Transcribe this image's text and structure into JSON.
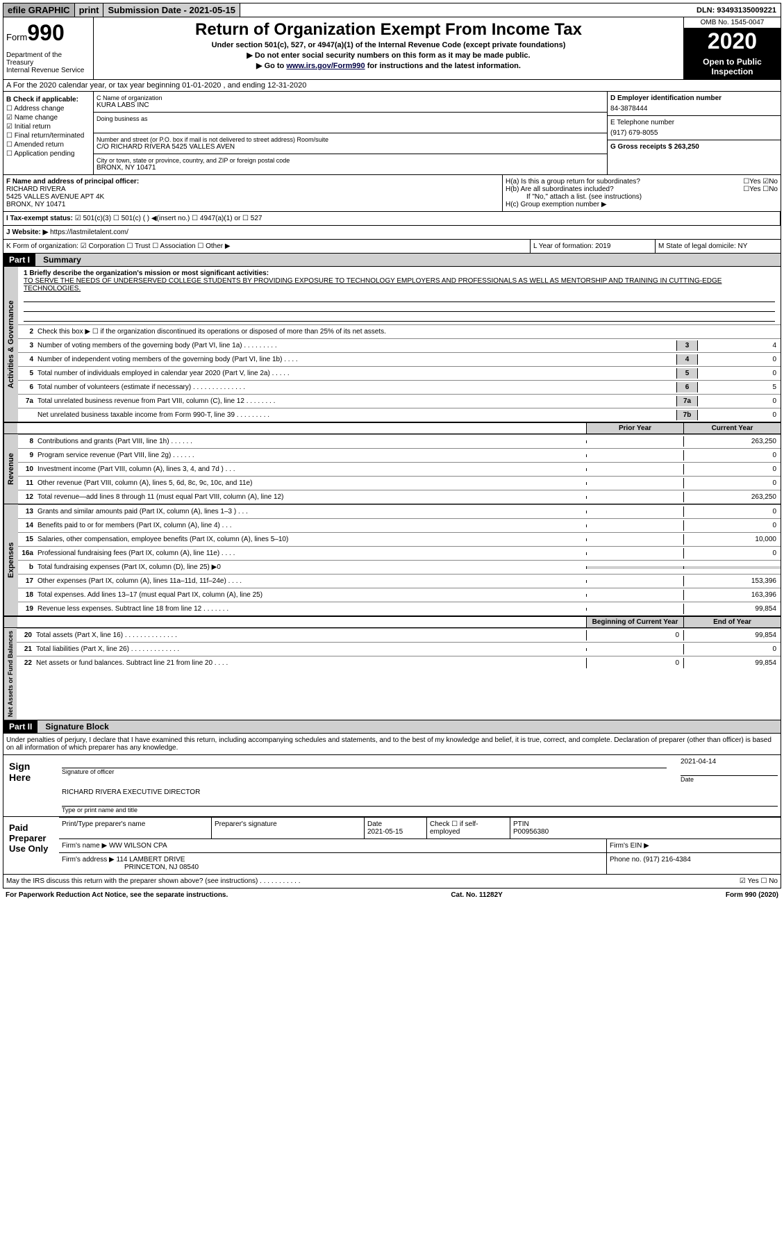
{
  "topbar": {
    "efile": "efile GRAPHIC",
    "print": "print",
    "submission_label": "Submission Date - 2021-05-15",
    "dln": "DLN: 93493135009221"
  },
  "header": {
    "form_label": "Form",
    "form_num": "990",
    "dept": "Department of the Treasury\nInternal Revenue Service",
    "title": "Return of Organization Exempt From Income Tax",
    "subtitle": "Under section 501(c), 527, or 4947(a)(1) of the Internal Revenue Code (except private foundations)",
    "note1": "▶ Do not enter social security numbers on this form as it may be made public.",
    "note2_pre": "▶ Go to ",
    "note2_link": "www.irs.gov/Form990",
    "note2_post": " for instructions and the latest information.",
    "omb": "OMB No. 1545-0047",
    "year": "2020",
    "open": "Open to Public Inspection"
  },
  "section_a": "A For the 2020 calendar year, or tax year beginning 01-01-2020   , and ending 12-31-2020",
  "col_b": {
    "label": "B Check if applicable:",
    "items": [
      "☐ Address change",
      "☑ Name change",
      "☑ Initial return",
      "☐ Final return/terminated",
      "☐ Amended return",
      "☐ Application pending"
    ]
  },
  "col_c": {
    "name_label": "C Name of organization",
    "name": "KURA LABS INC",
    "dba_label": "Doing business as",
    "addr_label": "Number and street (or P.O. box if mail is not delivered to street address)    Room/suite",
    "addr": "C/O RICHARD RIVERA 5425 VALLES AVEN",
    "city_label": "City or town, state or province, country, and ZIP or foreign postal code",
    "city": "BRONX, NY  10471"
  },
  "col_de": {
    "d_label": "D Employer identification number",
    "d_val": "84-3878444",
    "e_label": "E Telephone number",
    "e_val": "(917) 679-8055",
    "g_label": "G Gross receipts $ 263,250"
  },
  "row_f": {
    "f_label": "F  Name and address of principal officer:",
    "f_name": "RICHARD RIVERA",
    "f_addr1": "5425 VALLES AVENUE APT 4K",
    "f_addr2": "BRONX, NY  10471"
  },
  "row_h": {
    "ha": "H(a)  Is this a group return for subordinates?",
    "ha_ans": "☐Yes ☑No",
    "hb": "H(b)  Are all subordinates included?",
    "hb_ans": "☐Yes ☐No",
    "hb_note": "If \"No,\" attach a list. (see instructions)",
    "hc": "H(c)  Group exemption number ▶"
  },
  "row_i": {
    "label": "I   Tax-exempt status:",
    "opts": "☑ 501(c)(3)   ☐ 501(c) (  ) ◀(insert no.)   ☐ 4947(a)(1) or  ☐ 527"
  },
  "row_j": {
    "label": "J   Website: ▶",
    "val": "https://lastmiletalent.com/"
  },
  "row_k": {
    "label": "K Form of organization:  ☑ Corporation ☐ Trust ☐ Association ☐ Other ▶"
  },
  "row_l": {
    "label": "L Year of formation: 2019"
  },
  "row_m": {
    "label": "M State of legal domicile: NY"
  },
  "part1": {
    "header": "Part I",
    "title": "Summary",
    "vtext_gov": "Activities & Governance",
    "vtext_rev": "Revenue",
    "vtext_exp": "Expenses",
    "vtext_net": "Net Assets or Fund Balances",
    "line1_label": "1  Briefly describe the organization's mission or most significant activities:",
    "line1_text": "TO SERVE THE NEEDS OF UNDERSERVED COLLEGE STUDENTS BY PROVIDING EXPOSURE TO TECHNOLOGY EMPLOYERS AND PROFESSIONALS AS WELL AS MENTORSHIP AND TRAINING IN CUTTING-EDGE TECHNOLOGIES.",
    "line2": "Check this box ▶ ☐  if the organization discontinued its operations or disposed of more than 25% of its net assets.",
    "lines_a": [
      {
        "n": "3",
        "t": "Number of voting members of the governing body (Part VI, line 1a)  .  .  .  .  .  .  .  .  .",
        "box": "3",
        "v": "4"
      },
      {
        "n": "4",
        "t": "Number of independent voting members of the governing body (Part VI, line 1b)  .  .  .  .",
        "box": "4",
        "v": "0"
      },
      {
        "n": "5",
        "t": "Total number of individuals employed in calendar year 2020 (Part V, line 2a)  .  .  .  .  .",
        "box": "5",
        "v": "0"
      },
      {
        "n": "6",
        "t": "Total number of volunteers (estimate if necessary)   .  .  .  .  .  .  .  .  .  .  .  .  .  .",
        "box": "6",
        "v": "5"
      },
      {
        "n": "7a",
        "t": "Total unrelated business revenue from Part VIII, column (C), line 12  .  .  .  .  .  .  .  .",
        "box": "7a",
        "v": "0"
      },
      {
        "n": "",
        "t": "Net unrelated business taxable income from Form 990-T, line 39   .  .  .  .  .  .  .  .  .",
        "box": "7b",
        "v": "0"
      }
    ],
    "col_prior": "Prior Year",
    "col_current": "Current Year",
    "lines_rev": [
      {
        "n": "8",
        "t": "Contributions and grants (Part VIII, line 1h)   .  .  .  .  .  .",
        "p": "",
        "c": "263,250"
      },
      {
        "n": "9",
        "t": "Program service revenue (Part VIII, line 2g)   .  .  .  .  .  .",
        "p": "",
        "c": "0"
      },
      {
        "n": "10",
        "t": "Investment income (Part VIII, column (A), lines 3, 4, and 7d )   .  .  .",
        "p": "",
        "c": "0"
      },
      {
        "n": "11",
        "t": "Other revenue (Part VIII, column (A), lines 5, 6d, 8c, 9c, 10c, and 11e)",
        "p": "",
        "c": "0"
      },
      {
        "n": "12",
        "t": "Total revenue—add lines 8 through 11 (must equal Part VIII, column (A), line 12)",
        "p": "",
        "c": "263,250"
      }
    ],
    "lines_exp": [
      {
        "n": "13",
        "t": "Grants and similar amounts paid (Part IX, column (A), lines 1–3 )  .  .  .",
        "p": "",
        "c": "0"
      },
      {
        "n": "14",
        "t": "Benefits paid to or for members (Part IX, column (A), line 4)  .  .  .",
        "p": "",
        "c": "0"
      },
      {
        "n": "15",
        "t": "Salaries, other compensation, employee benefits (Part IX, column (A), lines 5–10)",
        "p": "",
        "c": "10,000"
      },
      {
        "n": "16a",
        "t": "Professional fundraising fees (Part IX, column (A), line 11e)  .  .  .  .",
        "p": "",
        "c": "0"
      },
      {
        "n": "b",
        "t": "Total fundraising expenses (Part IX, column (D), line 25) ▶0",
        "p": "—",
        "c": "—"
      },
      {
        "n": "17",
        "t": "Other expenses (Part IX, column (A), lines 11a–11d, 11f–24e)  .  .  .  .",
        "p": "",
        "c": "153,396"
      },
      {
        "n": "18",
        "t": "Total expenses. Add lines 13–17 (must equal Part IX, column (A), line 25)",
        "p": "",
        "c": "163,396"
      },
      {
        "n": "19",
        "t": "Revenue less expenses. Subtract line 18 from line 12 .  .  .  .  .  .  .",
        "p": "",
        "c": "99,854"
      }
    ],
    "col_begin": "Beginning of Current Year",
    "col_end": "End of Year",
    "lines_net": [
      {
        "n": "20",
        "t": "Total assets (Part X, line 16)  .  .  .  .  .  .  .  .  .  .  .  .  .  .",
        "p": "0",
        "c": "99,854"
      },
      {
        "n": "21",
        "t": "Total liabilities (Part X, line 26)  .  .  .  .  .  .  .  .  .  .  .  .  .",
        "p": "",
        "c": "0"
      },
      {
        "n": "22",
        "t": "Net assets or fund balances. Subtract line 21 from line 20  .  .  .  .",
        "p": "0",
        "c": "99,854"
      }
    ]
  },
  "part2": {
    "header": "Part II",
    "title": "Signature Block",
    "decl": "Under penalties of perjury, I declare that I have examined this return, including accompanying schedules and statements, and to the best of my knowledge and belief, it is true, correct, and complete. Declaration of preparer (other than officer) is based on all information of which preparer has any knowledge.",
    "sign_here": "Sign Here",
    "sig_officer": "Signature of officer",
    "sig_date": "2021-04-14",
    "sig_date_label": "Date",
    "sig_name": "RICHARD RIVERA  EXECUTIVE DIRECTOR",
    "sig_name_label": "Type or print name and title",
    "paid": "Paid Preparer Use Only",
    "prep_name_label": "Print/Type preparer's name",
    "prep_sig_label": "Preparer's signature",
    "prep_date_label": "Date",
    "prep_date": "2021-05-15",
    "prep_check": "Check ☐ if self-employed",
    "ptin_label": "PTIN",
    "ptin": "P00956380",
    "firm_name_label": "Firm's name    ▶",
    "firm_name": "WW WILSON CPA",
    "firm_ein_label": "Firm's EIN ▶",
    "firm_addr_label": "Firm's address ▶",
    "firm_addr1": "114 LAMBERT DRIVE",
    "firm_addr2": "PRINCETON, NJ  08540",
    "firm_phone_label": "Phone no. (917) 216-4384",
    "discuss": "May the IRS discuss this return with the preparer shown above? (see instructions)  .  .  .  .  .  .  .  .  .  .  .",
    "discuss_ans": "☑ Yes ☐ No"
  },
  "footer": {
    "left": "For Paperwork Reduction Act Notice, see the separate instructions.",
    "mid": "Cat. No. 11282Y",
    "right": "Form 990 (2020)"
  }
}
